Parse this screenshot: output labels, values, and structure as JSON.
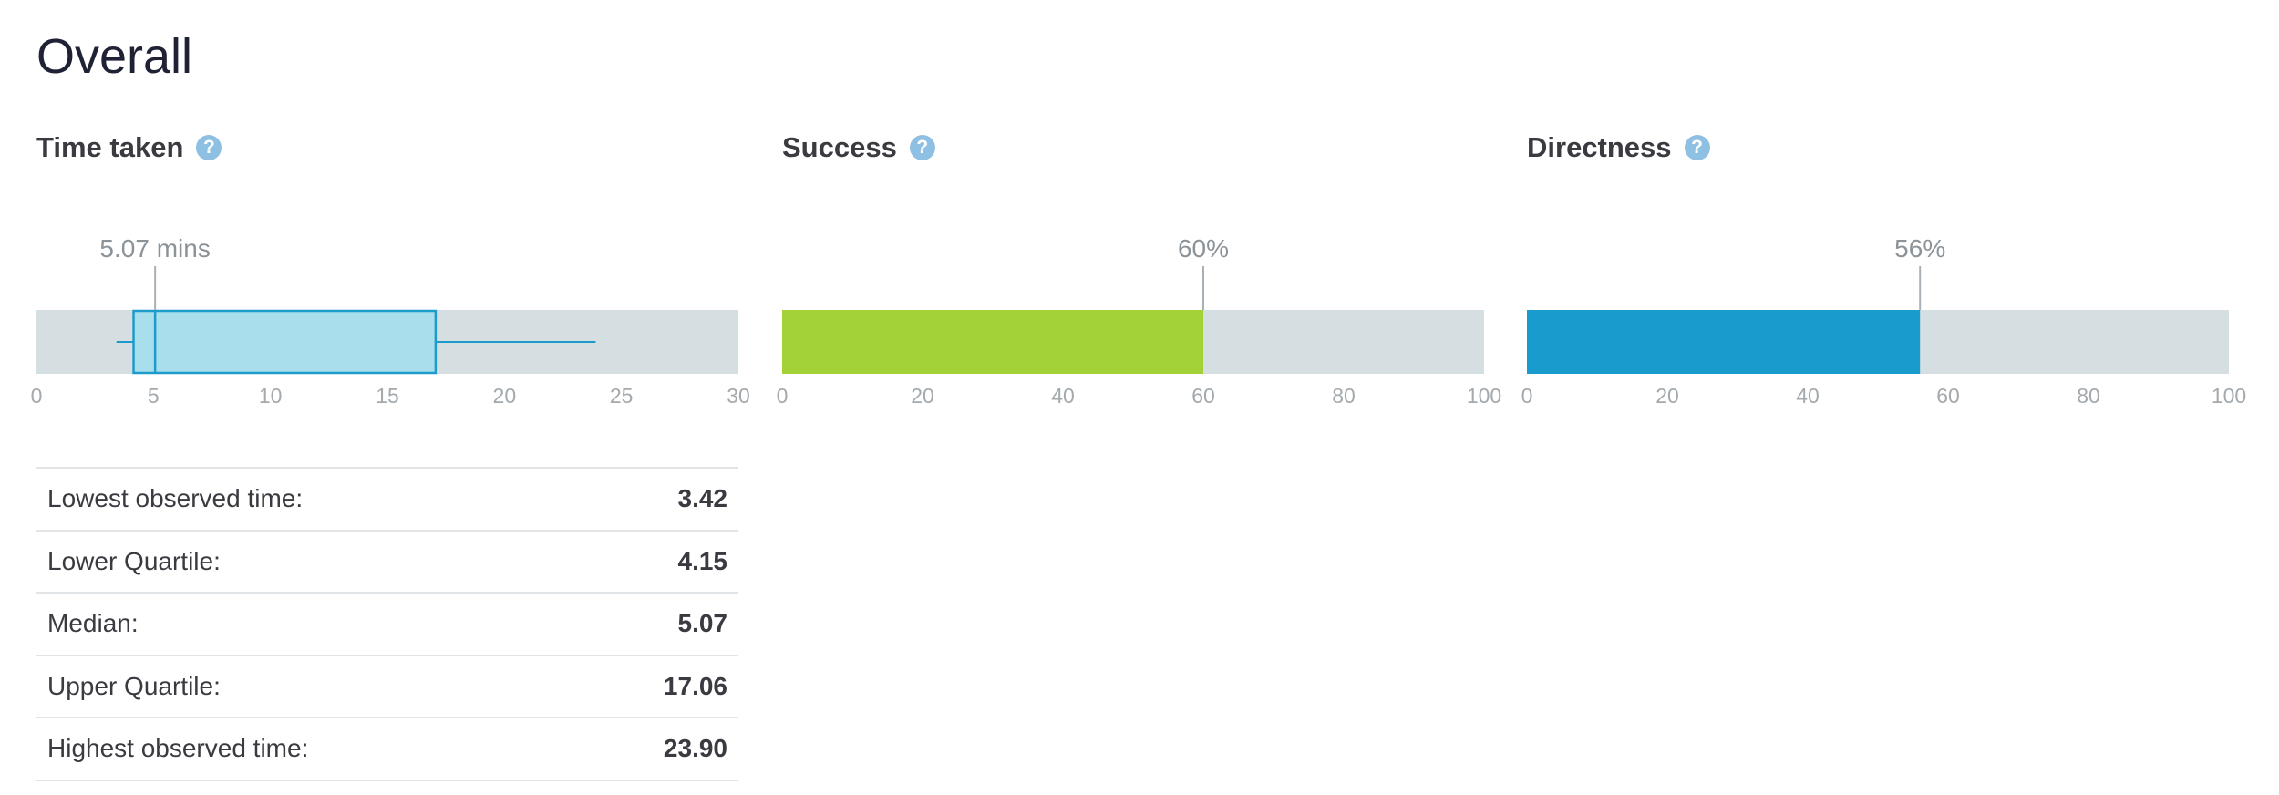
{
  "page": {
    "title": "Overall"
  },
  "chart_data": [
    {
      "type": "boxplot",
      "title": "Time taken",
      "help_icon": "help-icon",
      "annotation": "5.07 mins",
      "xlim": [
        0,
        30
      ],
      "ticks": [
        "0",
        "5",
        "10",
        "15",
        "20",
        "25",
        "30"
      ],
      "stats": {
        "min": 3.42,
        "q1": 4.15,
        "median": 5.07,
        "q3": 17.06,
        "max": 23.9
      },
      "colors": {
        "track": "#d5dfe2",
        "box_fill": "#a9deec",
        "box_stroke": "#1d9bcb",
        "marker": "#a8b0b5"
      }
    },
    {
      "type": "bar",
      "title": "Success",
      "help_icon": "help-icon",
      "annotation": "60%",
      "xlim": [
        0,
        100
      ],
      "ticks": [
        "0",
        "20",
        "40",
        "60",
        "80",
        "100"
      ],
      "value": 60,
      "colors": {
        "track": "#d5dfe2",
        "fill": "#a3d238",
        "marker": "#a8b0b5"
      }
    },
    {
      "type": "bar",
      "title": "Directness",
      "help_icon": "help-icon",
      "annotation": "56%",
      "xlim": [
        0,
        100
      ],
      "ticks": [
        "0",
        "20",
        "40",
        "60",
        "80",
        "100"
      ],
      "value": 56,
      "colors": {
        "track": "#d5dfe2",
        "fill": "#1a9bcd",
        "marker": "#a8b0b5"
      }
    }
  ],
  "stats_table": {
    "rows": [
      {
        "label": "Lowest observed time:",
        "value": "3.42"
      },
      {
        "label": "Lower Quartile:",
        "value": "4.15"
      },
      {
        "label": "Median:",
        "value": "5.07"
      },
      {
        "label": "Upper Quartile:",
        "value": "17.06"
      },
      {
        "label": "Highest observed time:",
        "value": "23.90"
      }
    ]
  }
}
